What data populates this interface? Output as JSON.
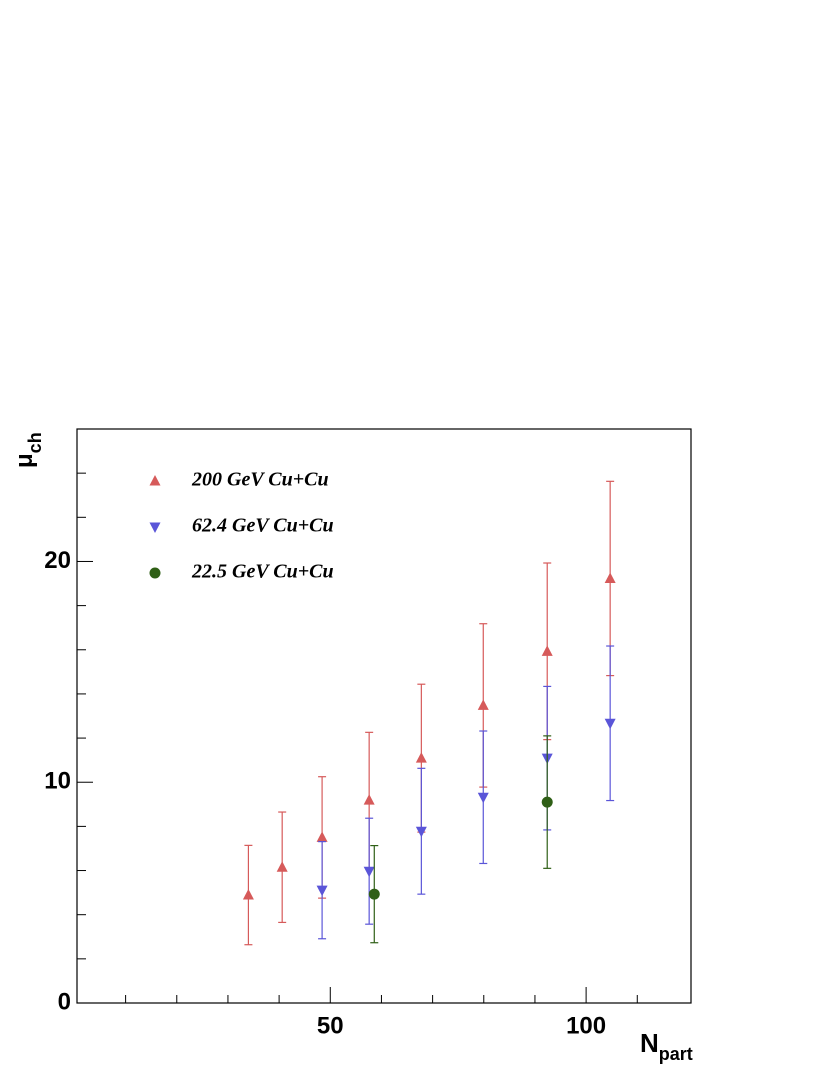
{
  "chart_data": {
    "type": "scatter",
    "xlabel": "N",
    "xlabel_sub": "part",
    "ylabel": "μ",
    "ylabel_sub": "ch",
    "xlim": [
      0.5,
      120.5
    ],
    "ylim": [
      0,
      26
    ],
    "xticks": [
      50,
      100
    ],
    "yticks": [
      0,
      10,
      20
    ],
    "xminorticks": [
      10,
      20,
      30,
      40,
      60,
      70,
      80,
      90,
      110
    ],
    "yminorticks": [
      2,
      4,
      6,
      8,
      12,
      14,
      16,
      18,
      22,
      24
    ],
    "legend": "upper-left",
    "series": [
      {
        "name": "200 GeV Cu+Cu",
        "color": "#d65a5a",
        "marker": "triangle-up",
        "x": [
          34,
          40.6,
          48.4,
          57.6,
          67.8,
          79.9,
          92.4,
          104.7
        ],
        "values": [
          4.89,
          6.15,
          7.5,
          9.19,
          11.09,
          13.48,
          15.93,
          19.23
        ],
        "errors": [
          2.25,
          2.5,
          2.75,
          3.07,
          3.35,
          3.7,
          4.0,
          4.4
        ]
      },
      {
        "name": "62.4 GeV Cu+Cu",
        "color": "#5a55d8",
        "marker": "triangle-down",
        "x": [
          48.4,
          57.6,
          67.8,
          79.9,
          92.4,
          104.7
        ],
        "values": [
          5.11,
          5.97,
          7.78,
          9.32,
          11.09,
          12.67
        ],
        "errors": [
          2.2,
          2.4,
          2.85,
          3.0,
          3.25,
          3.5
        ]
      },
      {
        "name": "22.5 GeV Cu+Cu",
        "color": "#2f5f16",
        "marker": "circle",
        "x": [
          58.6,
          92.4
        ],
        "values": [
          4.93,
          9.1
        ],
        "errors": [
          2.2,
          3.0
        ]
      }
    ]
  }
}
